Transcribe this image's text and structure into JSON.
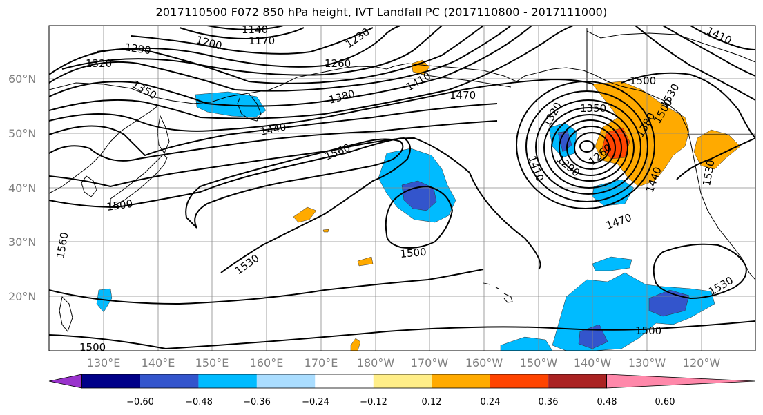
{
  "title": "2017110500 F072 850 hPa height, IVT Landfall PC (2017110800 - 2017111000)",
  "lat_labels": [
    "60°N",
    "50°N",
    "40°N",
    "30°N",
    "20°N"
  ],
  "lon_labels": [
    "130°E",
    "140°E",
    "150°E",
    "160°E",
    "170°E",
    "180°W",
    "170°W",
    "160°W",
    "150°W",
    "140°W",
    "130°W",
    "120°W"
  ],
  "contour_labels": [
    "1140",
    "1170",
    "1200",
    "1230",
    "1260",
    "1290",
    "1320",
    "1350",
    "1380",
    "1410",
    "1440",
    "1470",
    "1500",
    "1530",
    "1560",
    "1350",
    "1320",
    "1290",
    "1260",
    "1410",
    "1440",
    "1470",
    "1500",
    "1500",
    "1530",
    "1530",
    "1500",
    "1410",
    "1560",
    "1380",
    "1500",
    "1500",
    "1530"
  ],
  "colorbar": {
    "colors": [
      "#9933cc",
      "#000088",
      "#3355cc",
      "#00bbff",
      "#aaddff",
      "#ffffff",
      "#ffee88",
      "#ffaa00",
      "#ff4400",
      "#aa2222",
      "#ff88aa"
    ],
    "ticks": [
      "−0.60",
      "−0.48",
      "−0.36",
      "−0.24",
      "−0.12",
      "0.12",
      "0.24",
      "0.36",
      "0.48",
      "0.60"
    ]
  },
  "legend_colors": {
    "neg_light": "#00bbff",
    "neg_mid": "#3355cc",
    "pos_light": "#ffaa00",
    "pos_mid": "#ff4400"
  }
}
